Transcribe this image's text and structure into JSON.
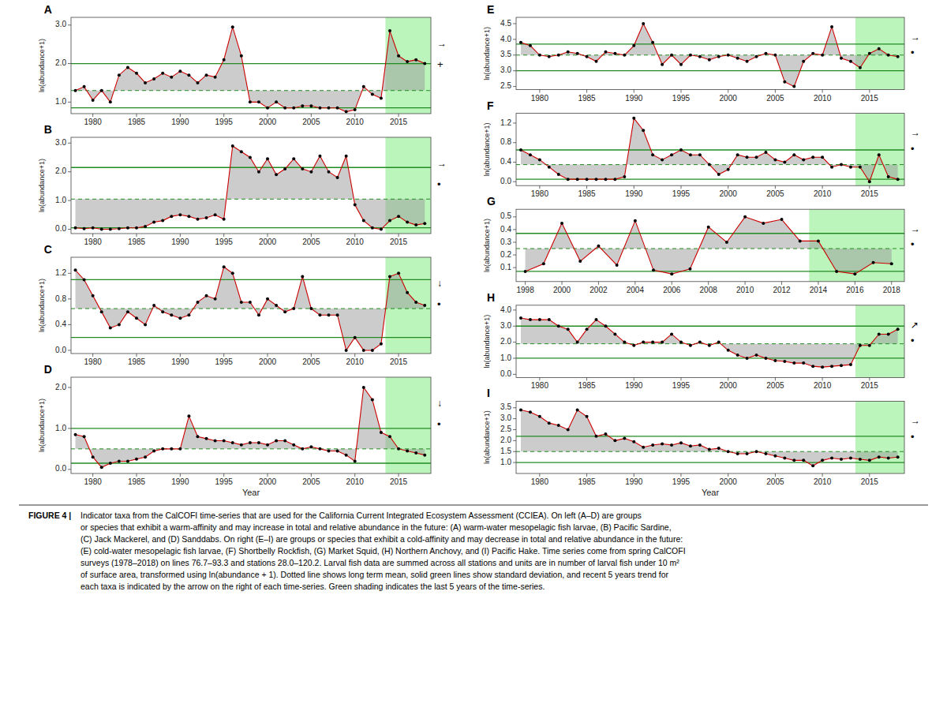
{
  "chart_data": [
    {
      "type": "line",
      "title": "A",
      "ylabel": "ln(abundance+1)",
      "color": "#cc0000",
      "marker": "circle",
      "x": [
        1978,
        1979,
        1980,
        1981,
        1982,
        1983,
        1984,
        1985,
        1986,
        1987,
        1988,
        1989,
        1990,
        1991,
        1992,
        1993,
        1994,
        1995,
        1996,
        1997,
        1998,
        1999,
        2000,
        2001,
        2002,
        2003,
        2004,
        2005,
        2006,
        2007,
        2008,
        2009,
        2010,
        2011,
        2012,
        2013,
        2014,
        2015,
        2016,
        2017,
        2018
      ],
      "values": [
        1.3,
        1.4,
        1.05,
        1.3,
        1.0,
        1.7,
        1.9,
        1.75,
        1.5,
        1.6,
        1.75,
        1.65,
        1.8,
        1.7,
        1.5,
        1.7,
        1.65,
        2.1,
        2.95,
        2.2,
        1.0,
        1.0,
        0.85,
        1.0,
        0.85,
        0.85,
        0.9,
        0.9,
        0.85,
        0.85,
        0.85,
        0.75,
        0.8,
        1.4,
        1.2,
        1.1,
        2.85,
        2.2,
        2.05,
        2.1,
        2.0
      ],
      "mean": 1.3,
      "sd_upper": 2.0,
      "sd_lower": 0.85,
      "green_start": 2014,
      "xlim": [
        1977.5,
        2018.7
      ],
      "xticks": [
        1980,
        1985,
        1990,
        1995,
        2000,
        2005,
        2010,
        2015
      ],
      "ylim": [
        0.7,
        3.2
      ],
      "yticks": [
        {
          "value": 1.0,
          "label": "1.0"
        },
        {
          "value": 2.0,
          "label": "2.0"
        },
        {
          "value": 3.0,
          "label": "3.0"
        }
      ],
      "trend_symbol": "→",
      "last_symbol": "+"
    },
    {
      "type": "line",
      "title": "B",
      "ylabel": "ln(abundance+1)",
      "color": "#cc0000",
      "marker": "circle",
      "x": [
        1978,
        1979,
        1980,
        1981,
        1982,
        1983,
        1984,
        1985,
        1986,
        1987,
        1988,
        1989,
        1990,
        1991,
        1992,
        1993,
        1994,
        1995,
        1996,
        1997,
        1998,
        1999,
        2000,
        2001,
        2002,
        2003,
        2004,
        2005,
        2006,
        2007,
        2008,
        2009,
        2010,
        2011,
        2012,
        2013,
        2014,
        2015,
        2016,
        2017,
        2018
      ],
      "values": [
        0.05,
        0.02,
        0.05,
        0.0,
        0.0,
        0.02,
        0.05,
        0.05,
        0.1,
        0.25,
        0.3,
        0.45,
        0.5,
        0.45,
        0.35,
        0.4,
        0.5,
        0.35,
        2.9,
        2.7,
        2.5,
        2.0,
        2.45,
        1.9,
        2.1,
        2.45,
        2.1,
        2.0,
        2.55,
        2.0,
        1.8,
        2.55,
        0.85,
        0.3,
        0.05,
        0.0,
        0.3,
        0.45,
        0.25,
        0.15,
        0.2
      ],
      "mean": 1.05,
      "sd_upper": 2.15,
      "sd_lower": 0.05,
      "green_start": 2014,
      "xlim": [
        1977.5,
        2018.7
      ],
      "xticks": [
        1980,
        1985,
        1990,
        1995,
        2000,
        2005,
        2010,
        2015
      ],
      "ylim": [
        -0.15,
        3.2
      ],
      "yticks": [
        {
          "value": 0.0,
          "label": "0.0"
        },
        {
          "value": 1.0,
          "label": "1.0"
        },
        {
          "value": 2.0,
          "label": "2.0"
        },
        {
          "value": 3.0,
          "label": "3.0"
        }
      ],
      "trend_symbol": "→",
      "last_symbol": "•"
    },
    {
      "type": "line",
      "title": "C",
      "ylabel": "ln(abundance+1)",
      "color": "#cc0000",
      "marker": "circle",
      "x": [
        1978,
        1979,
        1980,
        1981,
        1982,
        1983,
        1984,
        1985,
        1986,
        1987,
        1988,
        1989,
        1990,
        1991,
        1992,
        1993,
        1994,
        1995,
        1996,
        1997,
        1998,
        1999,
        2000,
        2001,
        2002,
        2003,
        2004,
        2005,
        2006,
        2007,
        2008,
        2009,
        2010,
        2011,
        2012,
        2013,
        2014,
        2015,
        2016,
        2017,
        2018
      ],
      "values": [
        1.25,
        1.1,
        0.85,
        0.6,
        0.35,
        0.4,
        0.6,
        0.5,
        0.4,
        0.7,
        0.6,
        0.55,
        0.5,
        0.55,
        0.75,
        0.85,
        0.8,
        1.3,
        1.2,
        0.75,
        0.75,
        0.55,
        0.8,
        0.7,
        0.6,
        0.65,
        1.15,
        0.65,
        0.55,
        0.55,
        0.55,
        0.0,
        0.2,
        0.0,
        0.0,
        0.1,
        1.15,
        1.2,
        0.9,
        0.75,
        0.7
      ],
      "mean": 0.65,
      "sd_upper": 1.1,
      "sd_lower": 0.2,
      "green_start": 2014,
      "xlim": [
        1977.5,
        2018.7
      ],
      "xticks": [
        1980,
        1985,
        1990,
        1995,
        2000,
        2005,
        2010,
        2015
      ],
      "ylim": [
        -0.05,
        1.45
      ],
      "yticks": [
        {
          "value": 0.0,
          "label": "0.0"
        },
        0.4,
        0.8,
        1.2
      ],
      "trend_symbol": "↓",
      "last_symbol": "•"
    },
    {
      "type": "line",
      "title": "D",
      "ylabel": "ln(abundance+1)",
      "xlabel": "Year",
      "color": "#cc0000",
      "marker": "circle",
      "x": [
        1978,
        1979,
        1980,
        1981,
        1982,
        1983,
        1984,
        1985,
        1986,
        1987,
        1988,
        1989,
        1990,
        1991,
        1992,
        1993,
        1994,
        1995,
        1996,
        1997,
        1998,
        1999,
        2000,
        2001,
        2002,
        2003,
        2004,
        2005,
        2006,
        2007,
        2008,
        2009,
        2010,
        2011,
        2012,
        2013,
        2014,
        2015,
        2016,
        2017,
        2018
      ],
      "values": [
        0.85,
        0.8,
        0.3,
        0.05,
        0.15,
        0.2,
        0.2,
        0.25,
        0.3,
        0.45,
        0.5,
        0.5,
        0.5,
        1.3,
        0.8,
        0.75,
        0.7,
        0.7,
        0.65,
        0.6,
        0.65,
        0.65,
        0.6,
        0.7,
        0.7,
        0.6,
        0.5,
        0.55,
        0.5,
        0.45,
        0.45,
        0.35,
        0.2,
        2.0,
        1.7,
        0.9,
        0.8,
        0.5,
        0.45,
        0.4,
        0.35
      ],
      "mean": 0.5,
      "sd_upper": 1.0,
      "sd_lower": 0.15,
      "green_start": 2014,
      "xlim": [
        1977.5,
        2018.7
      ],
      "xticks": [
        1980,
        1985,
        1990,
        1995,
        2000,
        2005,
        2010,
        2015
      ],
      "ylim": [
        -0.1,
        2.25
      ],
      "yticks": [
        {
          "value": 0.0,
          "label": "0.0"
        },
        {
          "value": 1.0,
          "label": "1.0"
        },
        {
          "value": 2.0,
          "label": "2.0"
        }
      ],
      "trend_symbol": "↓",
      "last_symbol": "•"
    },
    {
      "type": "line",
      "title": "E",
      "ylabel": "ln(abundance+1)",
      "color": "#cc0000",
      "marker": "circle",
      "x": [
        1978,
        1979,
        1980,
        1981,
        1982,
        1983,
        1984,
        1985,
        1986,
        1987,
        1988,
        1989,
        1990,
        1991,
        1992,
        1993,
        1994,
        1995,
        1996,
        1997,
        1998,
        1999,
        2000,
        2001,
        2002,
        2003,
        2004,
        2005,
        2006,
        2007,
        2008,
        2009,
        2010,
        2011,
        2012,
        2013,
        2014,
        2015,
        2016,
        2017,
        2018
      ],
      "values": [
        3.9,
        3.8,
        3.5,
        3.45,
        3.5,
        3.6,
        3.55,
        3.45,
        3.3,
        3.6,
        3.55,
        3.5,
        3.8,
        4.5,
        3.9,
        3.2,
        3.5,
        3.2,
        3.5,
        3.45,
        3.35,
        3.45,
        3.5,
        3.4,
        3.3,
        3.45,
        3.55,
        3.5,
        2.65,
        2.5,
        3.3,
        3.55,
        3.5,
        4.4,
        3.4,
        3.3,
        3.1,
        3.55,
        3.7,
        3.5,
        3.45
      ],
      "mean": 3.5,
      "sd_upper": 3.85,
      "sd_lower": 3.0,
      "green_start": 2014,
      "xlim": [
        1977.5,
        2018.7
      ],
      "xticks": [
        1980,
        1985,
        1990,
        1995,
        2000,
        2005,
        2010,
        2015
      ],
      "ylim": [
        2.4,
        4.7
      ],
      "yticks": [
        2.5,
        {
          "value": 3.0,
          "label": "3.0"
        },
        3.5,
        {
          "value": 4.0,
          "label": "4.0"
        },
        4.5
      ],
      "trend_symbol": "→",
      "last_symbol": "•"
    },
    {
      "type": "line",
      "title": "F",
      "ylabel": "ln(abundance+1)",
      "color": "#cc0000",
      "marker": "circle",
      "x": [
        1978,
        1979,
        1980,
        1981,
        1982,
        1983,
        1984,
        1985,
        1986,
        1987,
        1988,
        1989,
        1990,
        1991,
        1992,
        1993,
        1994,
        1995,
        1996,
        1997,
        1998,
        1999,
        2000,
        2001,
        2002,
        2003,
        2004,
        2005,
        2006,
        2007,
        2008,
        2009,
        2010,
        2011,
        2012,
        2013,
        2014,
        2015,
        2016,
        2017,
        2018
      ],
      "values": [
        0.65,
        0.55,
        0.45,
        0.3,
        0.15,
        0.05,
        0.05,
        0.05,
        0.05,
        0.05,
        0.05,
        0.1,
        1.3,
        1.05,
        0.55,
        0.45,
        0.55,
        0.65,
        0.55,
        0.55,
        0.35,
        0.15,
        0.25,
        0.55,
        0.5,
        0.5,
        0.6,
        0.45,
        0.4,
        0.55,
        0.45,
        0.5,
        0.5,
        0.3,
        0.35,
        0.3,
        0.3,
        0.0,
        0.55,
        0.1,
        0.05
      ],
      "mean": 0.35,
      "sd_upper": 0.65,
      "sd_lower": 0.05,
      "green_start": 2014,
      "xlim": [
        1977.5,
        2018.7
      ],
      "xticks": [
        1980,
        1985,
        1990,
        1995,
        2000,
        2005,
        2010,
        2015
      ],
      "ylim": [
        -0.08,
        1.4
      ],
      "yticks": [
        {
          "value": 0.0,
          "label": "0.0"
        },
        0.4,
        0.8,
        1.2
      ],
      "trend_symbol": "→",
      "last_symbol": "•"
    },
    {
      "type": "line",
      "title": "G",
      "ylabel": "ln(abundance+1)",
      "color": "#cc0000",
      "marker": "circle",
      "x": [
        1998,
        1999,
        2000,
        2001,
        2002,
        2003,
        2004,
        2005,
        2006,
        2007,
        2008,
        2009,
        2010,
        2011,
        2012,
        2013,
        2014,
        2015,
        2016,
        2017,
        2018
      ],
      "values": [
        0.07,
        0.13,
        0.45,
        0.15,
        0.27,
        0.12,
        0.47,
        0.08,
        0.05,
        0.09,
        0.42,
        0.3,
        0.5,
        0.45,
        0.48,
        0.31,
        0.31,
        0.07,
        0.05,
        0.14,
        0.13
      ],
      "mean": 0.25,
      "sd_upper": 0.37,
      "sd_lower": 0.07,
      "green_start": 2014,
      "xlim": [
        1997.5,
        2018.7
      ],
      "xticks": [
        1998,
        2000,
        2002,
        2004,
        2006,
        2008,
        2010,
        2012,
        2014,
        2016,
        2018
      ],
      "ylim": [
        -0.01,
        0.56
      ],
      "yticks": [
        0.1,
        0.2,
        0.3,
        0.4,
        0.5
      ],
      "trend_symbol": "→",
      "last_symbol": "•"
    },
    {
      "type": "line",
      "title": "H",
      "ylabel": "ln(abundance+1)",
      "color": "#cc0000",
      "marker": "circle",
      "x": [
        1978,
        1979,
        1980,
        1981,
        1982,
        1983,
        1984,
        1985,
        1986,
        1987,
        1988,
        1989,
        1990,
        1991,
        1992,
        1993,
        1994,
        1995,
        1996,
        1997,
        1998,
        1999,
        2000,
        2001,
        2002,
        2003,
        2004,
        2005,
        2006,
        2007,
        2008,
        2009,
        2010,
        2011,
        2012,
        2013,
        2014,
        2015,
        2016,
        2017,
        2018
      ],
      "values": [
        3.5,
        3.4,
        3.4,
        3.4,
        3.0,
        2.8,
        2.0,
        2.8,
        3.4,
        3.0,
        2.5,
        2.0,
        1.8,
        2.0,
        2.0,
        2.0,
        2.5,
        2.0,
        1.8,
        2.0,
        1.8,
        2.0,
        1.5,
        1.2,
        1.0,
        1.2,
        1.0,
        0.85,
        0.8,
        0.7,
        0.7,
        0.5,
        0.45,
        0.5,
        0.55,
        0.6,
        1.8,
        1.8,
        2.5,
        2.5,
        2.8
      ],
      "mean": 1.9,
      "sd_upper": 3.0,
      "sd_lower": 1.0,
      "green_start": 2014,
      "xlim": [
        1977.5,
        2018.7
      ],
      "xticks": [
        1980,
        1985,
        1990,
        1995,
        2000,
        2005,
        2010,
        2015
      ],
      "ylim": [
        -0.2,
        4.3
      ],
      "yticks": [
        {
          "value": 0.0,
          "label": "0.0"
        },
        {
          "value": 1.0,
          "label": "1.0"
        },
        {
          "value": 2.0,
          "label": "2.0"
        },
        {
          "value": 3.0,
          "label": "3.0"
        },
        {
          "value": 4.0,
          "label": "4.0"
        }
      ],
      "trend_symbol": "↗",
      "last_symbol": "•"
    },
    {
      "type": "line",
      "title": "I",
      "ylabel": "ln(abundance+1)",
      "xlabel": "Year",
      "color": "#cc0000",
      "marker": "circle",
      "x": [
        1978,
        1979,
        1980,
        1981,
        1982,
        1983,
        1984,
        1985,
        1986,
        1987,
        1988,
        1989,
        1990,
        1991,
        1992,
        1993,
        1994,
        1995,
        1996,
        1997,
        1998,
        1999,
        2000,
        2001,
        2002,
        2003,
        2004,
        2005,
        2006,
        2007,
        2008,
        2009,
        2010,
        2011,
        2012,
        2013,
        2014,
        2015,
        2016,
        2017,
        2018
      ],
      "values": [
        3.4,
        3.3,
        3.1,
        2.8,
        2.7,
        2.5,
        3.4,
        3.1,
        2.2,
        2.3,
        2.0,
        2.1,
        1.95,
        1.7,
        1.8,
        1.85,
        1.8,
        1.9,
        1.75,
        1.8,
        1.6,
        1.65,
        1.5,
        1.4,
        1.4,
        1.5,
        1.4,
        1.3,
        1.2,
        1.1,
        1.1,
        0.85,
        1.1,
        1.2,
        1.15,
        1.2,
        1.15,
        1.1,
        1.25,
        1.2,
        1.25
      ],
      "mean": 1.5,
      "sd_upper": 2.2,
      "sd_lower": 1.0,
      "green_start": 2014,
      "xlim": [
        1977.5,
        2018.7
      ],
      "xticks": [
        1980,
        1985,
        1990,
        1995,
        2000,
        2005,
        2010,
        2015
      ],
      "ylim": [
        0.5,
        3.8
      ],
      "yticks": [
        {
          "value": 1.0,
          "label": "1.0"
        },
        1.5,
        {
          "value": 2.0,
          "label": "2.0"
        },
        2.5,
        {
          "value": 3.0,
          "label": "3.0"
        },
        3.5
      ],
      "trend_symbol": "→",
      "last_symbol": "•"
    }
  ],
  "caption_prefix": "FIGURE 4 |",
  "caption": "Indicator taxa from the CalCOFI time-series that are used for the California Current Integrated Ecosystem Assessment (CCIEA). On left (A–D) are groups\nor species that exhibit a warm-affinity and may increase in total and relative abundance in the future: (A) warm-water mesopelagic fish larvae, (B) Pacific Sardine,\n(C) Jack Mackerel, and (D) Sanddabs. On right (E–I) are groups or species that exhibit a cold-affinity and may decrease in total and relative abundance in the future:\n(E) cold-water mesopelagic fish larvae, (F) Shortbelly Rockfish, (G) Market Squid, (H) Northern Anchovy, and (I) Pacific Hake. Time series come from spring CalCOFI\nsurveys (1978–2018) on lines 76.7–93.3 and stations 28.0–120.2. Larval fish data are summed across all stations and units are in number of larval fish under 10 m²\nof surface area, transformed using ln(abundance + 1). Dotted line shows long term mean, solid green lines show standard deviation, and recent 5 years trend for\neach taxa is indicated by the arrow on the right of each time-series. Green shading indicates the last 5 years of the time-series."
}
